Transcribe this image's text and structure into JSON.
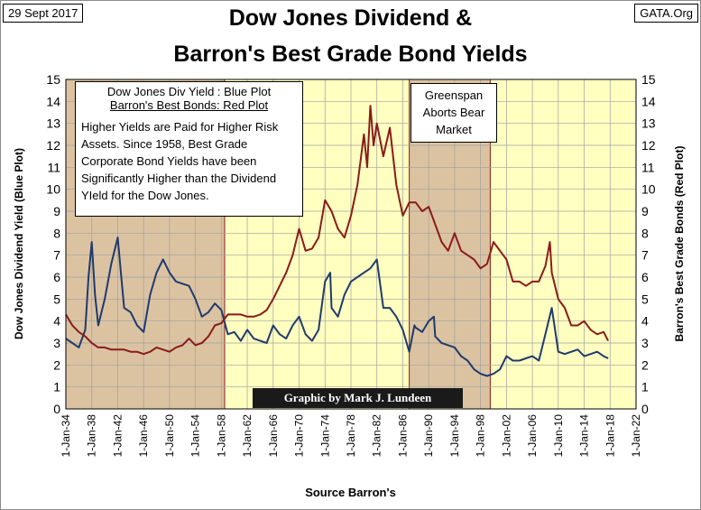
{
  "header": {
    "date": "29 Sept 2017",
    "site": "GATA.Org",
    "title_line1": "Dow Jones Dividend &",
    "title_line2": "Barron's Best Grade Bond Yields"
  },
  "legend": {
    "line1": "Dow Jones Div Yield : Blue Plot",
    "line2": "Barron's Best Bonds: Red Plot",
    "body": "Higher Yields are Paid for Higher Risk Assets.  Since 1958, Best Grade Corporate Bond Yields have been Significantly Higher than the Dividend YIeld for the Dow Jones."
  },
  "annotation": {
    "text": "Greenspan Aborts Bear Market"
  },
  "credit": "Graphic by Mark J. Lundeen",
  "source": "Source Barron's",
  "colors": {
    "plot_background": "#ffffc0",
    "shaded_region": "#dbc3a2",
    "blue_series": "#1f3a6e",
    "red_series": "#8b1a1a",
    "shade_border": "#8b1a1a"
  },
  "chart_data": {
    "type": "line",
    "title": "Dow Jones Dividend & Barron's Best Grade Bond Yields",
    "xlabel": "Source Barron's",
    "ylabel_left": "Dow Jones Dividend Yield (Blue Plot)",
    "ylabel_right": "Barron's Best Grade Bonds (Red Plot)",
    "ylim": [
      0,
      15
    ],
    "yticks": [
      0,
      1,
      2,
      3,
      4,
      5,
      6,
      7,
      8,
      9,
      10,
      11,
      12,
      13,
      14,
      15
    ],
    "xlim": [
      1934,
      2022
    ],
    "xticks": [
      1934,
      1938,
      1942,
      1946,
      1950,
      1954,
      1958,
      1962,
      1966,
      1970,
      1974,
      1978,
      1982,
      1986,
      1990,
      1994,
      1998,
      2002,
      2006,
      2010,
      2014,
      2018,
      2022
    ],
    "xtick_labels": [
      "1-Jan-34",
      "1-Jan-38",
      "1-Jan-42",
      "1-Jan-46",
      "1-Jan-50",
      "1-Jan-54",
      "1-Jan-58",
      "1-Jan-62",
      "1-Jan-66",
      "1-Jan-70",
      "1-Jan-74",
      "1-Jan-78",
      "1-Jan-82",
      "1-Jan-86",
      "1-Jan-90",
      "1-Jan-94",
      "1-Jan-98",
      "1-Jan-02",
      "1-Jan-06",
      "1-Jan-10",
      "1-Jan-14",
      "1-Jan-18",
      "1-Jan-22"
    ],
    "shaded_periods": [
      [
        1934,
        1958.5
      ],
      [
        1987,
        1999.5
      ]
    ],
    "grid": true,
    "series": [
      {
        "name": "Dow Jones Div Yield",
        "x": [
          1934,
          1935,
          1936,
          1937,
          1937.5,
          1938,
          1938.5,
          1939,
          1940,
          1941,
          1942,
          1942.5,
          1943,
          1944,
          1945,
          1946,
          1947,
          1948,
          1949,
          1950,
          1951,
          1952,
          1953,
          1954,
          1955,
          1956,
          1957,
          1958,
          1959,
          1960,
          1961,
          1962,
          1963,
          1964,
          1965,
          1966,
          1967,
          1968,
          1969,
          1970,
          1971,
          1972,
          1973,
          1974,
          1974.8,
          1975,
          1976,
          1977,
          1978,
          1979,
          1980,
          1981,
          1982,
          1983,
          1984,
          1985,
          1986,
          1987,
          1987.8,
          1988,
          1989,
          1990,
          1990.8,
          1991,
          1992,
          1993,
          1994,
          1995,
          1996,
          1997,
          1998,
          1999,
          2000,
          2001,
          2002,
          2003,
          2004,
          2005,
          2006,
          2007,
          2008,
          2009,
          2009.3,
          2010,
          2011,
          2012,
          2013,
          2014,
          2015,
          2016,
          2017,
          2017.7
        ],
        "values": [
          3.2,
          3.0,
          2.8,
          3.6,
          6.0,
          7.6,
          5.2,
          3.8,
          5.0,
          6.6,
          7.8,
          6.2,
          4.6,
          4.4,
          3.8,
          3.5,
          5.2,
          6.2,
          6.8,
          6.2,
          5.8,
          5.7,
          5.6,
          5.0,
          4.2,
          4.4,
          4.8,
          4.5,
          3.4,
          3.5,
          3.1,
          3.6,
          3.2,
          3.1,
          3.0,
          3.8,
          3.4,
          3.2,
          3.8,
          4.2,
          3.4,
          3.1,
          3.6,
          5.8,
          6.2,
          4.6,
          4.2,
          5.2,
          5.8,
          6.0,
          6.2,
          6.4,
          6.8,
          4.6,
          4.6,
          4.2,
          3.6,
          2.6,
          3.8,
          3.7,
          3.5,
          4.0,
          4.2,
          3.3,
          3.0,
          2.9,
          2.8,
          2.4,
          2.2,
          1.8,
          1.6,
          1.5,
          1.6,
          1.8,
          2.4,
          2.2,
          2.2,
          2.3,
          2.4,
          2.2,
          3.4,
          4.6,
          4.0,
          2.6,
          2.5,
          2.6,
          2.7,
          2.4,
          2.5,
          2.6,
          2.4,
          2.3
        ]
      },
      {
        "name": "Barron's Best Grade Bonds",
        "x": [
          1934,
          1935,
          1936,
          1937,
          1938,
          1939,
          1940,
          1941,
          1942,
          1943,
          1944,
          1945,
          1946,
          1947,
          1948,
          1949,
          1950,
          1951,
          1952,
          1953,
          1954,
          1955,
          1956,
          1957,
          1958,
          1959,
          1960,
          1961,
          1962,
          1963,
          1964,
          1965,
          1966,
          1967,
          1968,
          1969,
          1970,
          1971,
          1972,
          1973,
          1974,
          1975,
          1976,
          1977,
          1978,
          1979,
          1980,
          1980.5,
          1981,
          1981.5,
          1982,
          1983,
          1984,
          1985,
          1986,
          1987,
          1988,
          1989,
          1990,
          1991,
          1992,
          1993,
          1994,
          1995,
          1996,
          1997,
          1998,
          1999,
          2000,
          2001,
          2002,
          2003,
          2004,
          2005,
          2006,
          2007,
          2008,
          2008.7,
          2009,
          2010,
          2011,
          2012,
          2013,
          2014,
          2015,
          2016,
          2017,
          2017.7
        ],
        "values": [
          4.3,
          3.8,
          3.5,
          3.3,
          3.0,
          2.8,
          2.8,
          2.7,
          2.7,
          2.7,
          2.6,
          2.6,
          2.5,
          2.6,
          2.8,
          2.7,
          2.6,
          2.8,
          2.9,
          3.2,
          2.9,
          3.0,
          3.3,
          3.8,
          3.9,
          4.3,
          4.3,
          4.3,
          4.2,
          4.2,
          4.3,
          4.5,
          5.0,
          5.6,
          6.2,
          7.0,
          8.2,
          7.2,
          7.3,
          7.8,
          9.5,
          9.0,
          8.2,
          7.8,
          8.8,
          10.2,
          12.5,
          11.0,
          13.8,
          12.0,
          13.0,
          11.5,
          12.8,
          10.2,
          8.8,
          9.4,
          9.4,
          9.0,
          9.2,
          8.4,
          7.6,
          7.2,
          8.0,
          7.2,
          7.0,
          6.8,
          6.4,
          6.6,
          7.6,
          7.2,
          6.8,
          5.8,
          5.8,
          5.6,
          5.8,
          5.8,
          6.5,
          7.6,
          6.2,
          5.0,
          4.6,
          3.8,
          3.8,
          4.0,
          3.6,
          3.4,
          3.5,
          3.1
        ]
      }
    ]
  }
}
